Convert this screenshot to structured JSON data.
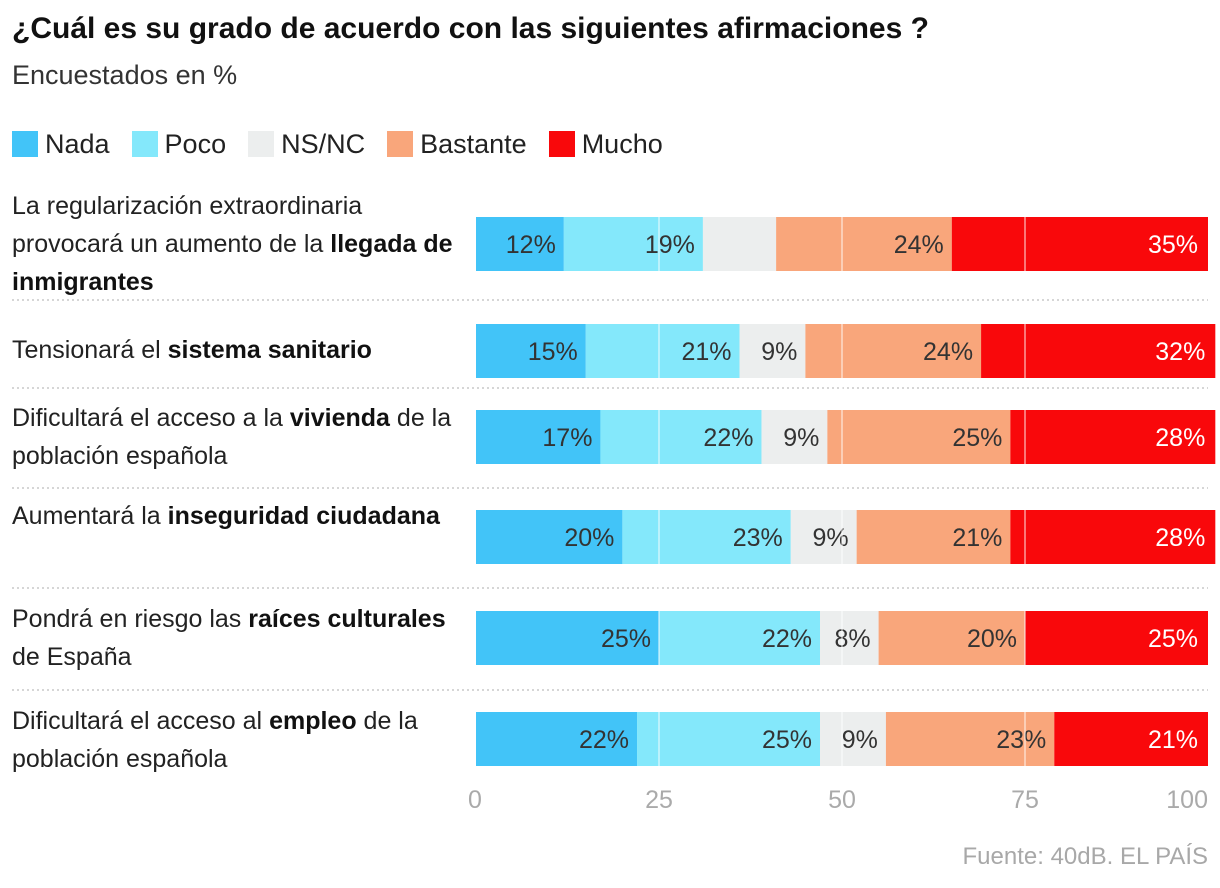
{
  "header": {
    "title": "¿Cuál es su grado de acuerdo con las siguientes afirmaciones ?",
    "subtitle": "Encuestados en %"
  },
  "legend": [
    {
      "label": "Nada",
      "color": "#42c4f8"
    },
    {
      "label": "Poco",
      "color": "#84e8fb"
    },
    {
      "label": "NS/NC",
      "color": "#eceeee"
    },
    {
      "label": "Bastante",
      "color": "#f9a67b"
    },
    {
      "label": "Mucho",
      "color": "#f9080b"
    }
  ],
  "rows": [
    {
      "label": [
        {
          "text": "La regularización extraordinaria provocará un aumento de la "
        },
        {
          "text": "llegada de inmigrantes",
          "bold": true
        }
      ]
    },
    {
      "label": [
        {
          "text": "Tensionará el "
        },
        {
          "text": "sistema sanitario",
          "bold": true
        }
      ]
    },
    {
      "label": [
        {
          "text": "Dificultará el acceso a la "
        },
        {
          "text": "vivienda",
          "bold": true
        },
        {
          "text": " de la población española"
        }
      ]
    },
    {
      "label": [
        {
          "text": "Aumentará la "
        },
        {
          "text": "inseguridad ciudadana",
          "bold": true
        }
      ]
    },
    {
      "label": [
        {
          "text": "Pondrá en riesgo las "
        },
        {
          "text": "raíces culturales",
          "bold": true
        },
        {
          "text": " de España"
        }
      ]
    },
    {
      "label": [
        {
          "text": "Dificultará el acceso al "
        },
        {
          "text": "empleo",
          "bold": true
        },
        {
          "text": " de la población española"
        }
      ]
    }
  ],
  "source": "Fuente: 40dB. EL PAÍS",
  "chart_data": {
    "type": "bar",
    "orientation": "horizontal",
    "stacked": true,
    "title": "¿Cuál es su grado de acuerdo con las siguientes afirmaciones ?",
    "subtitle": "Encuestados en %",
    "categories": [
      "La regularización extraordinaria provocará un aumento de la llegada de inmigrantes",
      "Tensionará el sistema sanitario",
      "Dificultará el acceso a la vivienda de la población española",
      "Aumentará la inseguridad ciudadana",
      "Pondrá en riesgo las raíces culturales de España",
      "Dificultará el acceso al empleo de la población española"
    ],
    "series": [
      {
        "name": "Nada",
        "color": "#42c4f8",
        "values": [
          12,
          15,
          17,
          20,
          25,
          22
        ],
        "labels": [
          "12%",
          "15%",
          "17%",
          "20%",
          "25%",
          "22%"
        ]
      },
      {
        "name": "Poco",
        "color": "#84e8fb",
        "values": [
          19,
          21,
          22,
          23,
          22,
          25
        ],
        "labels": [
          "19%",
          "21%",
          "22%",
          "23%",
          "22%",
          "25%"
        ]
      },
      {
        "name": "NS/NC",
        "color": "#eceeee",
        "values": [
          10,
          9,
          9,
          9,
          8,
          9
        ],
        "labels": [
          "",
          "9%",
          "9%",
          "9%",
          "8%",
          "9%"
        ]
      },
      {
        "name": "Bastante",
        "color": "#f9a67b",
        "values": [
          24,
          24,
          25,
          21,
          20,
          23
        ],
        "labels": [
          "24%",
          "24%",
          "25%",
          "21%",
          "20%",
          "23%"
        ]
      },
      {
        "name": "Mucho",
        "color": "#f9080b",
        "values": [
          35,
          32,
          28,
          28,
          25,
          21
        ],
        "labels": [
          "35%",
          "32%",
          "28%",
          "28%",
          "25%",
          "21%"
        ]
      }
    ],
    "xlim": [
      0,
      100
    ],
    "xticks": [
      0,
      25,
      50,
      75,
      100
    ],
    "xtick_labels": [
      "0",
      "25",
      "50",
      "75",
      "100"
    ],
    "grid": true,
    "legend_position": "top-left"
  }
}
